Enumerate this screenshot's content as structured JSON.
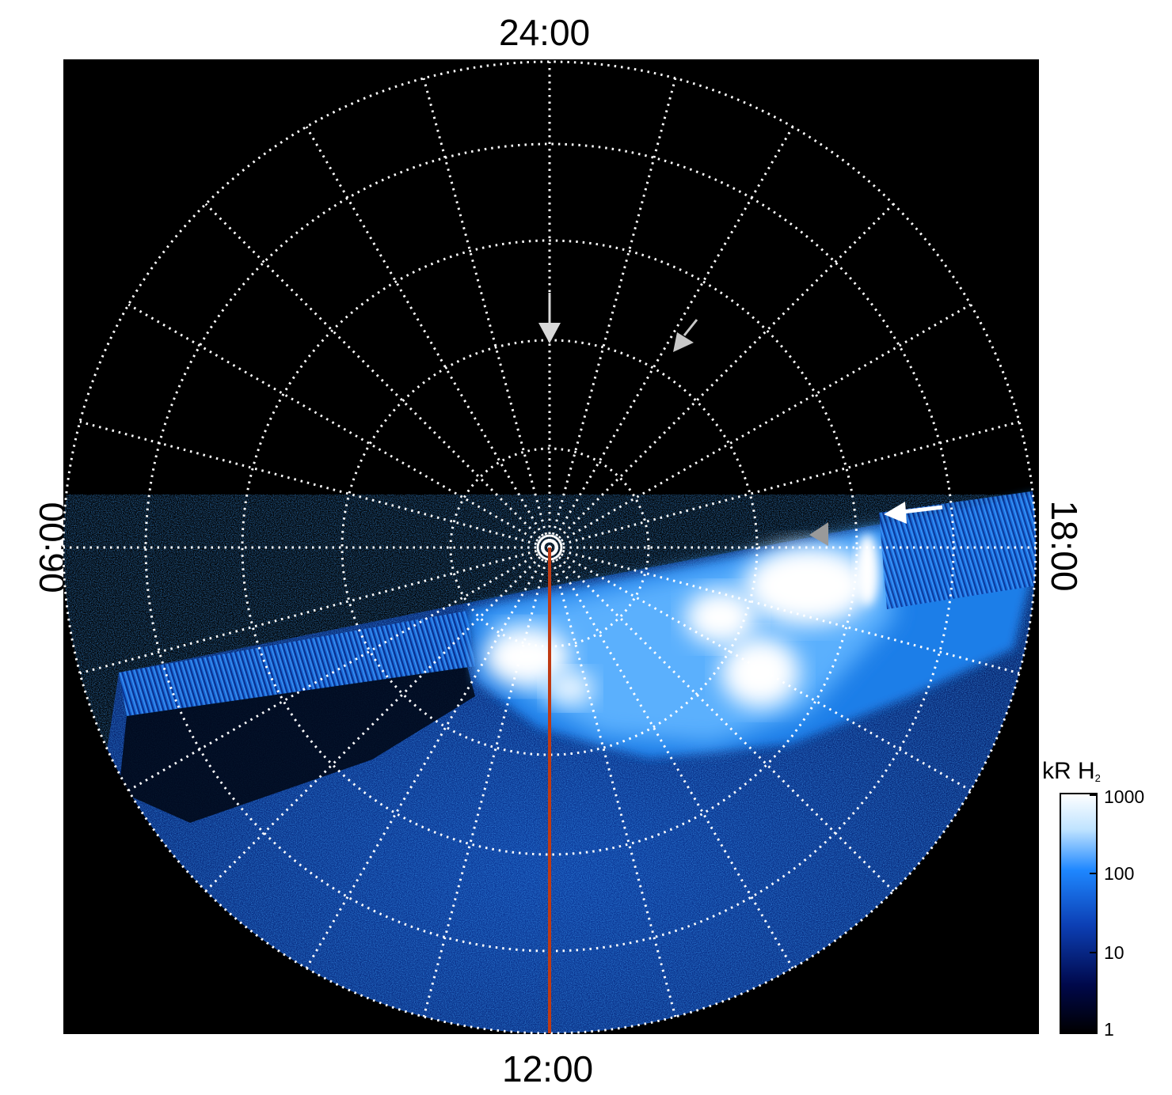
{
  "local_time_labels": {
    "top": "24:00",
    "bottom": "12:00",
    "left": "06:00",
    "right": "18:00"
  },
  "colorbar": {
    "title": "kR H",
    "title_subscript": "2",
    "ticks": [
      "1000",
      "100",
      "10",
      "1"
    ],
    "scale": "log",
    "range": [
      1,
      1000
    ],
    "colors": [
      "#000000",
      "#00084a",
      "#0c3fb4",
      "#1e87ff",
      "#bfe3ff",
      "#ffffff"
    ]
  },
  "colors": {
    "background": "#000000",
    "grid": "#ffffff",
    "meridian_line": "#c03a12",
    "arrow_light": "#d8d8d8",
    "arrow_gray": "#9a9a9a",
    "arrow_white": "#ffffff"
  },
  "annotations": [
    {
      "name": "arrow-midnight",
      "icon": "arrow-down-icon"
    },
    {
      "name": "arrow-pre-midnight",
      "icon": "arrow-down-left-icon"
    },
    {
      "name": "arrow-dusk-gray",
      "icon": "triangle-left-icon"
    },
    {
      "name": "arrow-dusk-white",
      "icon": "arrow-left-icon"
    }
  ]
}
